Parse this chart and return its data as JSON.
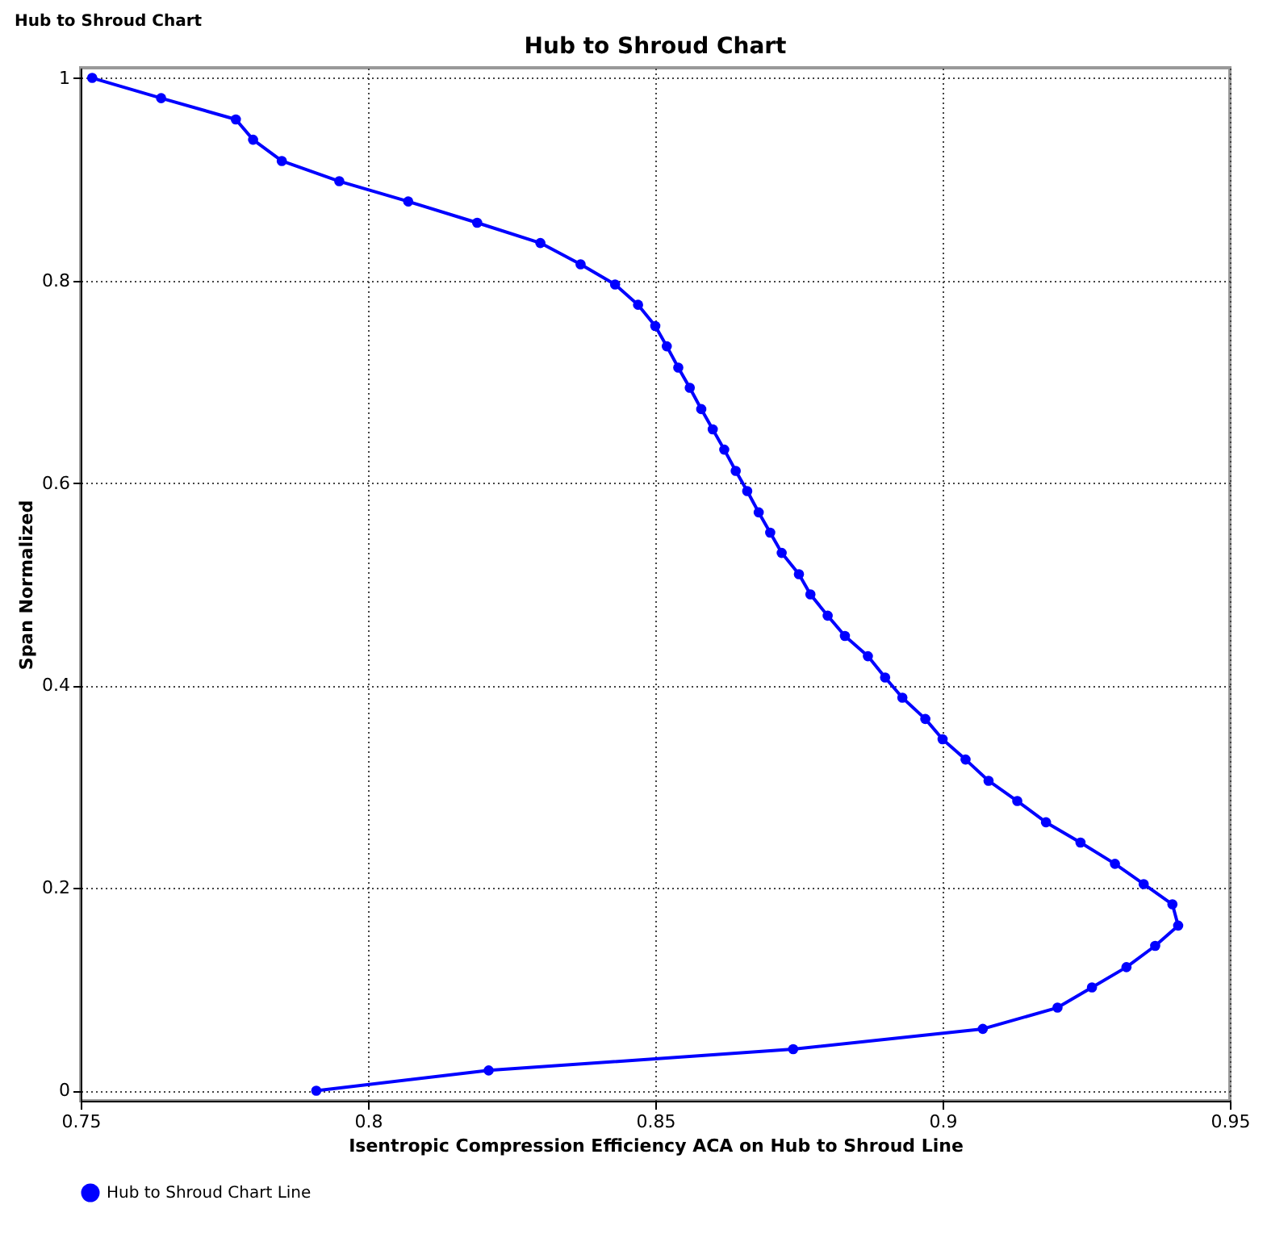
{
  "chart_data": {
    "type": "line",
    "title": "Hub to Shroud Chart",
    "annotations": [
      "Hub to Shroud Chart"
    ],
    "xlabel": "Isentropic Compression Efficiency ACA on Hub to Shroud Line",
    "ylabel": "Span Normalized",
    "xlim": [
      0.75,
      0.95
    ],
    "xticks": [
      0.75,
      0.8,
      0.85,
      0.9,
      0.95
    ],
    "ylim": [
      -0.01,
      1.01
    ],
    "yticks": [
      0,
      0.2,
      0.4,
      0.6,
      0.8,
      1
    ],
    "grid": true,
    "legend": "bottom",
    "marker": "circle",
    "line_style": "solid",
    "series": [
      {
        "name": "Hub to Shroud Chart Line",
        "color": "#0000ff",
        "x": [
          0.791,
          0.821,
          0.874,
          0.907,
          0.92,
          0.926,
          0.932,
          0.937,
          0.941,
          0.94,
          0.935,
          0.93,
          0.924,
          0.918,
          0.913,
          0.908,
          0.904,
          0.9,
          0.897,
          0.893,
          0.89,
          0.887,
          0.883,
          0.88,
          0.877,
          0.875,
          0.872,
          0.87,
          0.868,
          0.866,
          0.864,
          0.862,
          0.86,
          0.858,
          0.856,
          0.854,
          0.852,
          0.85,
          0.847,
          0.843,
          0.837,
          0.83,
          0.819,
          0.807,
          0.795,
          0.785,
          0.78,
          0.777,
          0.764,
          0.752
        ],
        "values": [
          0,
          0.02,
          0.041,
          0.061,
          0.082,
          0.102,
          0.122,
          0.143,
          0.163,
          0.184,
          0.204,
          0.224,
          0.245,
          0.265,
          0.286,
          0.306,
          0.327,
          0.347,
          0.367,
          0.388,
          0.408,
          0.429,
          0.449,
          0.469,
          0.49,
          0.51,
          0.531,
          0.551,
          0.571,
          0.592,
          0.612,
          0.633,
          0.653,
          0.673,
          0.694,
          0.714,
          0.735,
          0.755,
          0.776,
          0.796,
          0.816,
          0.837,
          0.857,
          0.878,
          0.898,
          0.918,
          0.939,
          0.959,
          0.98,
          1
        ]
      }
    ]
  }
}
